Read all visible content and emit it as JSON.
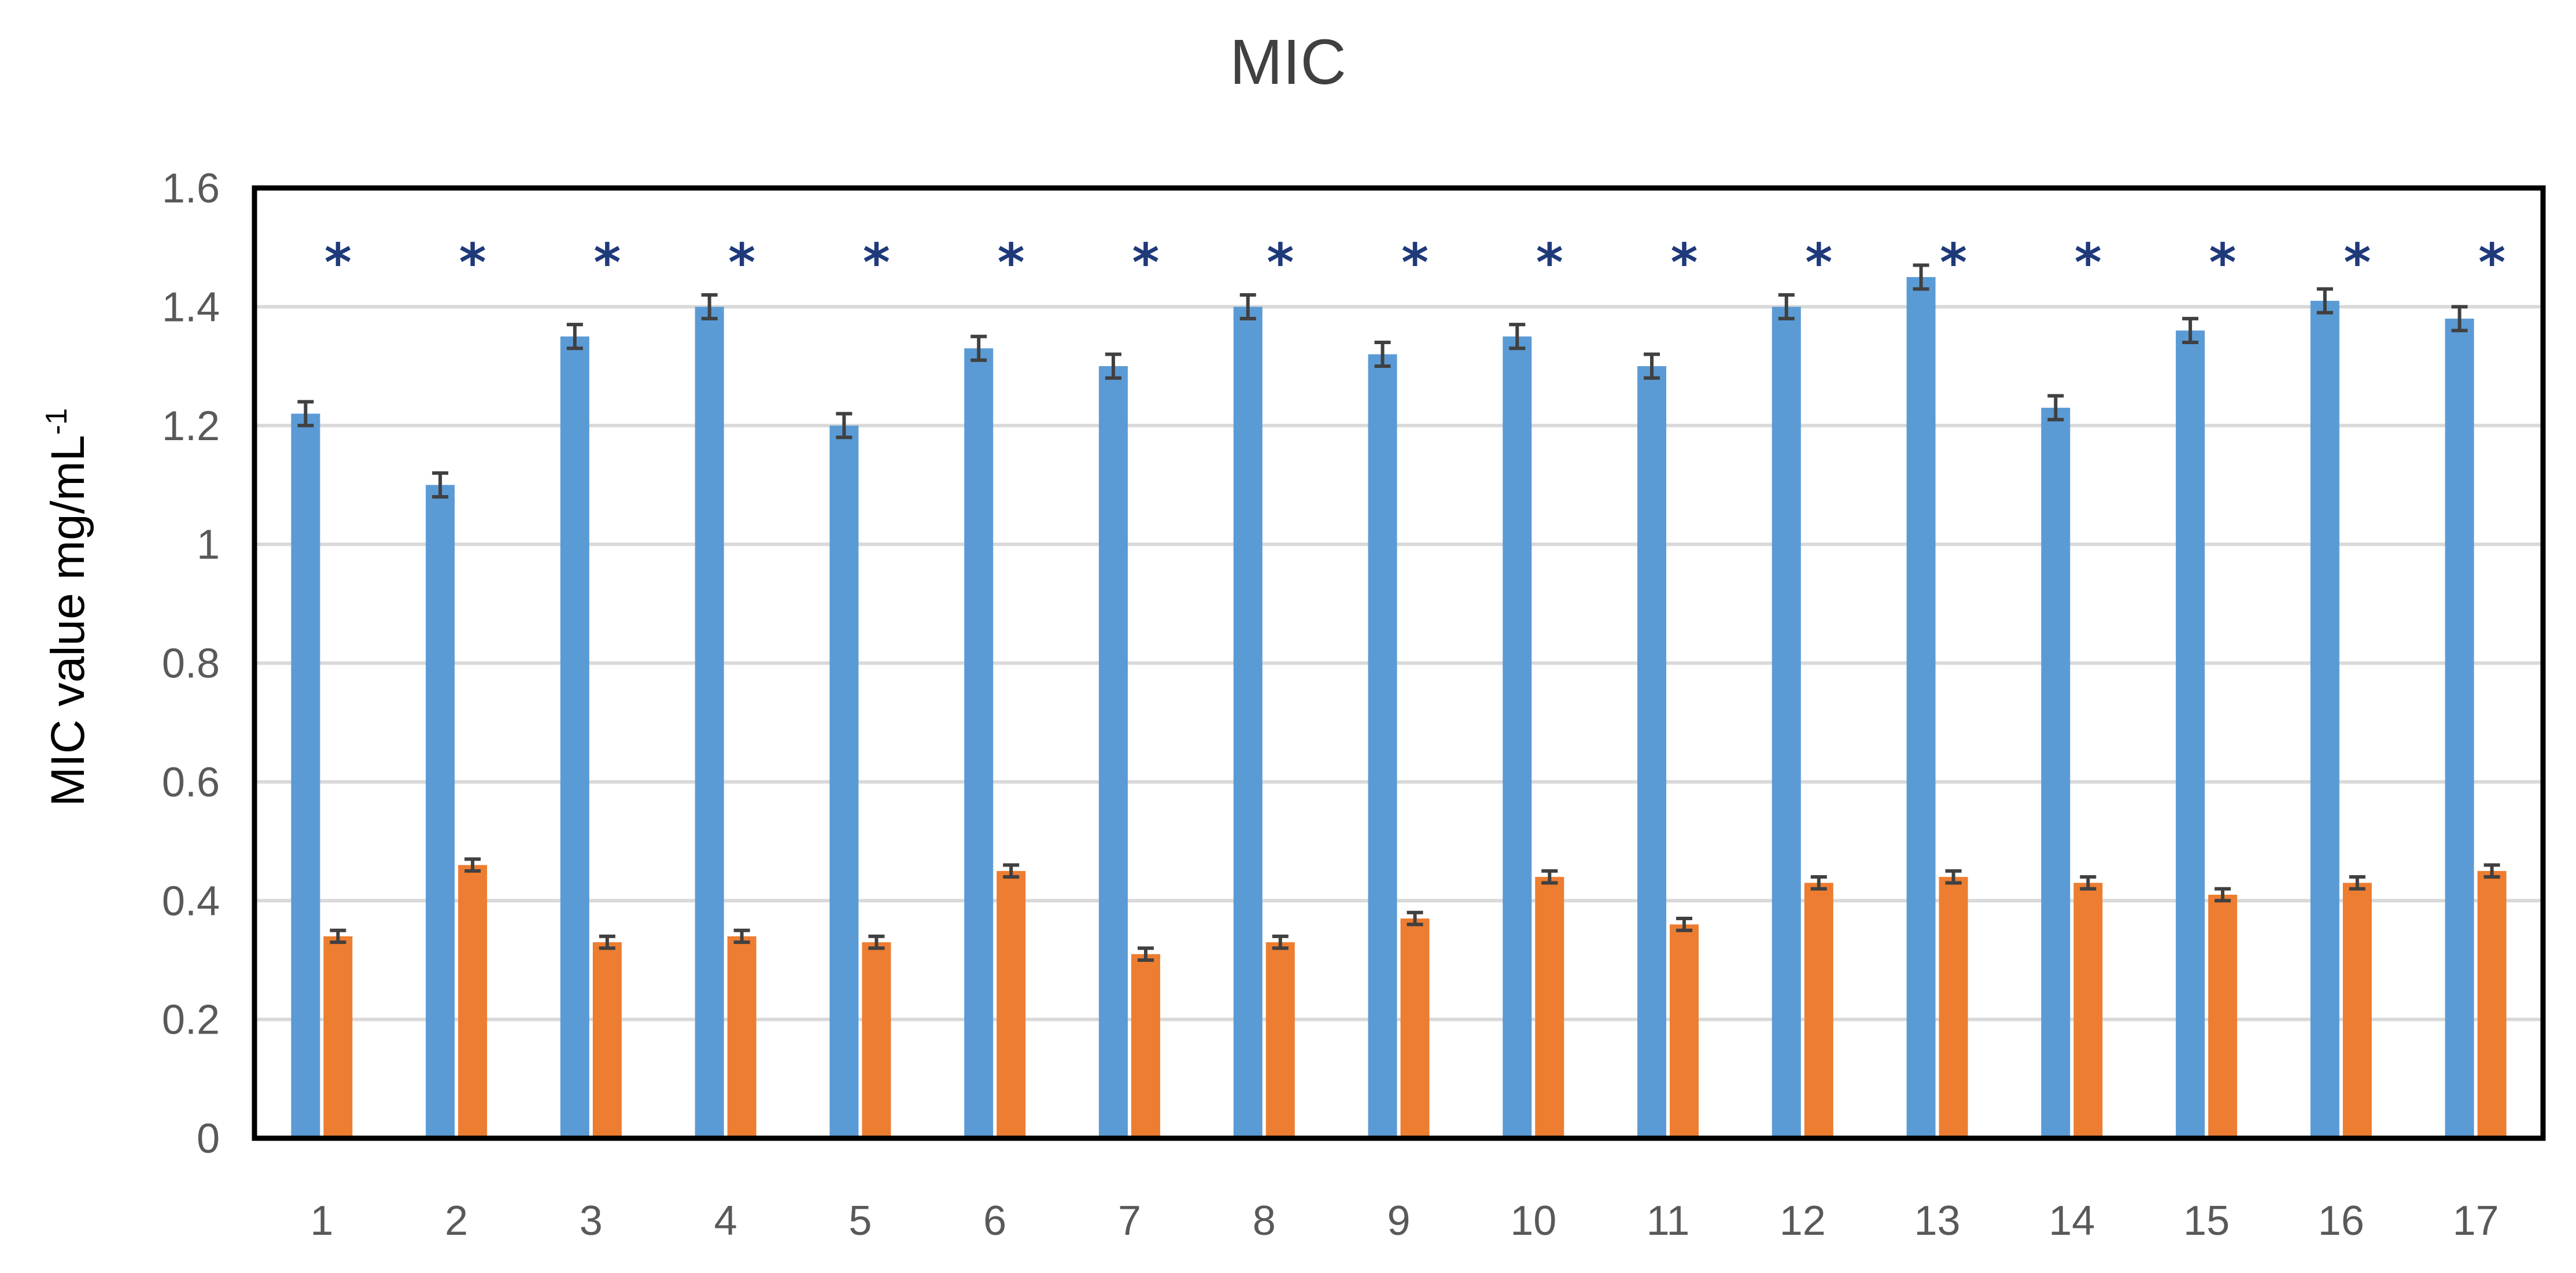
{
  "chart_data": {
    "type": "bar",
    "title": "MIC",
    "xlabel": "",
    "ylabel": "MIC value mg/mL",
    "ylabel_superscript": "-1",
    "ylim": [
      0,
      1.6
    ],
    "yticks": [
      "0",
      "0.2",
      "0.4",
      "0.6",
      "0.8",
      "1",
      "1.2",
      "1.4",
      "1.6"
    ],
    "ytick_values": [
      0,
      0.2,
      0.4,
      0.6,
      0.8,
      1.0,
      1.2,
      1.4,
      1.6
    ],
    "categories": [
      "1",
      "2",
      "3",
      "4",
      "5",
      "6",
      "7",
      "8",
      "9",
      "10",
      "11",
      "12",
      "13",
      "14",
      "15",
      "16",
      "17"
    ],
    "grid": true,
    "significance_marker": "*",
    "series": [
      {
        "color": "#5b9bd5",
        "values": [
          1.22,
          1.1,
          1.35,
          1.4,
          1.2,
          1.33,
          1.3,
          1.4,
          1.32,
          1.35,
          1.3,
          1.4,
          1.45,
          1.23,
          1.36,
          1.41,
          1.38
        ],
        "errors": [
          0.02,
          0.02,
          0.02,
          0.02,
          0.02,
          0.02,
          0.02,
          0.02,
          0.02,
          0.02,
          0.02,
          0.02,
          0.02,
          0.02,
          0.02,
          0.02,
          0.02
        ]
      },
      {
        "color": "#ed7d31",
        "values": [
          0.34,
          0.46,
          0.33,
          0.34,
          0.33,
          0.45,
          0.31,
          0.33,
          0.37,
          0.44,
          0.36,
          0.43,
          0.44,
          0.43,
          0.41,
          0.43,
          0.45
        ],
        "errors": [
          0.01,
          0.01,
          0.01,
          0.01,
          0.01,
          0.01,
          0.01,
          0.01,
          0.01,
          0.01,
          0.01,
          0.01,
          0.01,
          0.01,
          0.01,
          0.01,
          0.01
        ]
      }
    ]
  }
}
